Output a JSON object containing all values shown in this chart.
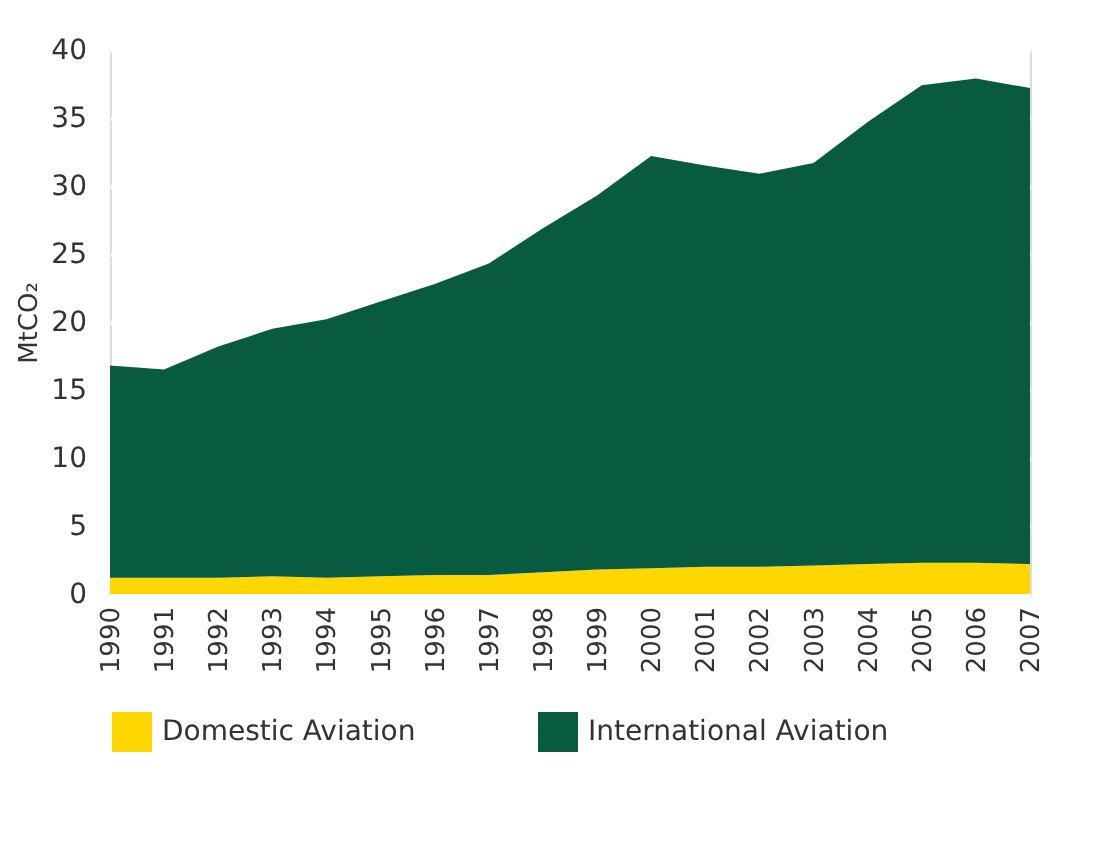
{
  "chart_data": {
    "type": "area",
    "ylabel": "MtCO₂",
    "stacked": true,
    "categories": [
      "1990",
      "1991",
      "1992",
      "1993",
      "1994",
      "1995",
      "1996",
      "1997",
      "1998",
      "1999",
      "2000",
      "2001",
      "2002",
      "2003",
      "2004",
      "2005",
      "2006",
      "2007"
    ],
    "series": [
      {
        "name": "Domestic Aviation",
        "color": "#ffd700",
        "values": [
          1.2,
          1.2,
          1.2,
          1.3,
          1.2,
          1.3,
          1.4,
          1.4,
          1.6,
          1.8,
          1.9,
          2.0,
          2.0,
          2.1,
          2.2,
          2.3,
          2.3,
          2.2
        ]
      },
      {
        "name": "International Aviation",
        "color": "#085a40",
        "values": [
          15.6,
          15.3,
          17.0,
          18.2,
          19.0,
          20.2,
          21.4,
          22.9,
          25.3,
          27.5,
          30.3,
          29.5,
          28.9,
          29.6,
          32.5,
          35.1,
          35.6,
          35.0
        ]
      }
    ],
    "ylim": [
      0,
      40
    ],
    "yticks": [
      0,
      5,
      10,
      15,
      20,
      25,
      30,
      35,
      40
    ],
    "grid": "y",
    "legend": "bottom"
  }
}
